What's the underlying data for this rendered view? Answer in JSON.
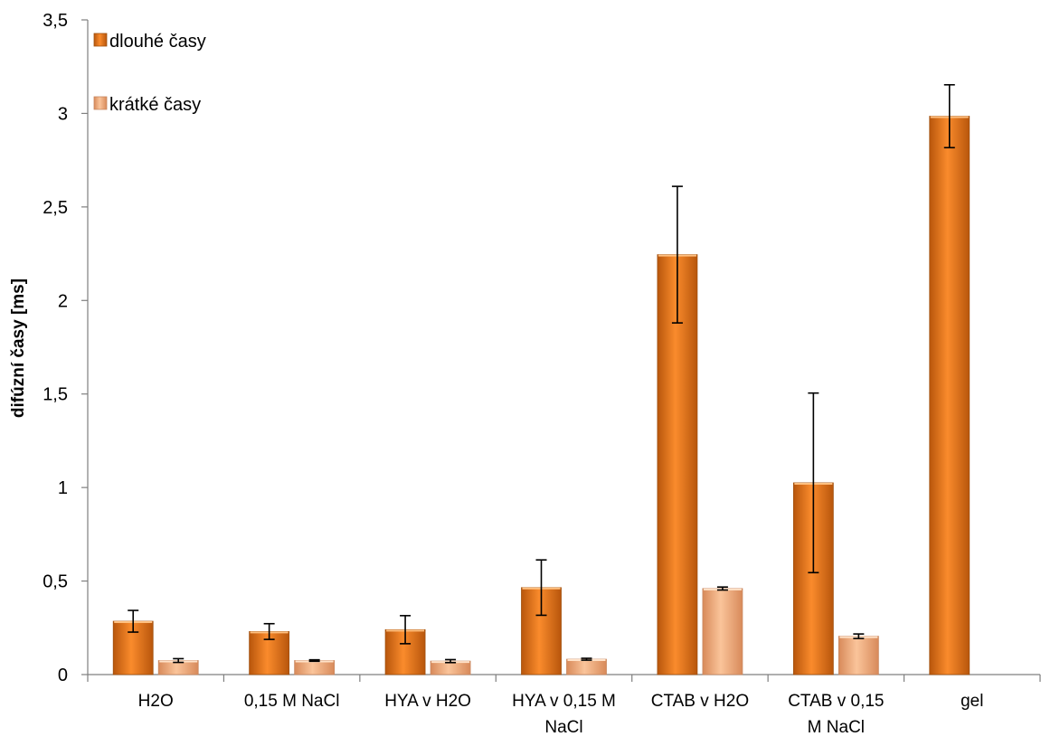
{
  "chart_data": {
    "type": "bar",
    "ylabel": "difúzní časy [ms]",
    "ylim": [
      0,
      3.5
    ],
    "yticks": [
      "0",
      "0,5",
      "1",
      "1,5",
      "2",
      "2,5",
      "3",
      "3,5"
    ],
    "ytick_values": [
      0,
      0.5,
      1,
      1.5,
      2,
      2.5,
      3,
      3.5
    ],
    "categories": [
      [
        "H2O"
      ],
      [
        "0,15 M NaCl"
      ],
      [
        "HYA v H2O"
      ],
      [
        "HYA v 0,15 M",
        "NaCl"
      ],
      [
        "CTAB v H2O"
      ],
      [
        "CTAB v 0,15",
        "M NaCl"
      ],
      [
        "gel"
      ]
    ],
    "series": [
      {
        "name": "dlouhé časy",
        "color": "#E8801E",
        "values": [
          0.285,
          0.23,
          0.24,
          0.465,
          2.245,
          1.025,
          2.985
        ],
        "errors": [
          0.058,
          0.042,
          0.075,
          0.148,
          0.365,
          0.48,
          0.168
        ]
      },
      {
        "name": "krátké časy",
        "color": "#F2B07E",
        "values": [
          0.075,
          0.075,
          0.072,
          0.082,
          0.46,
          0.205,
          null
        ],
        "errors": [
          0.01,
          0.004,
          0.008,
          0.005,
          0.008,
          0.012,
          null
        ]
      }
    ],
    "legend_position": "top-left",
    "grid": false
  }
}
